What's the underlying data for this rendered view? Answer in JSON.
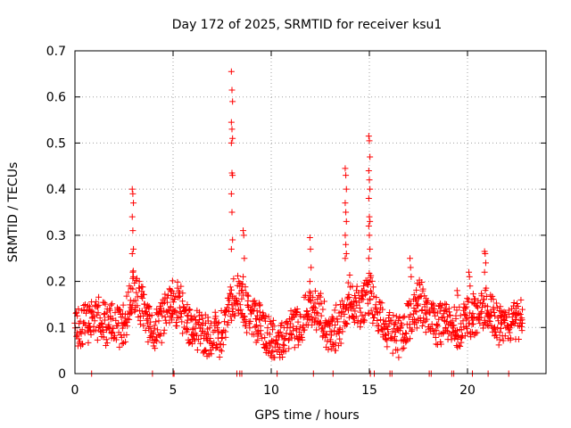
{
  "chart_data": {
    "type": "scatter",
    "title": "Day 172 of 2025, SRMTID for receiver ksu1",
    "xlabel": "GPS time / hours",
    "ylabel": "SRMTID / TECUs",
    "xlim": [
      0,
      24
    ],
    "ylim": [
      0,
      0.7
    ],
    "xticks": [
      0,
      5,
      10,
      15,
      20
    ],
    "yticks": [
      0,
      0.1,
      0.2,
      0.3,
      0.4,
      0.5,
      0.6,
      0.7
    ],
    "grid": true,
    "marker": "plus",
    "colors": {
      "series": "#ff0000",
      "grid": "#a0a0a0",
      "axes": "#000000"
    },
    "series": [
      {
        "name": "SRMTID",
        "trend": [
          [
            0.0,
            0.1
          ],
          [
            0.5,
            0.11
          ],
          [
            1.0,
            0.12
          ],
          [
            1.5,
            0.11
          ],
          [
            2.0,
            0.11
          ],
          [
            2.5,
            0.1
          ],
          [
            2.8,
            0.15
          ],
          [
            3.0,
            0.18
          ],
          [
            3.5,
            0.14
          ],
          [
            4.0,
            0.09
          ],
          [
            4.5,
            0.12
          ],
          [
            5.0,
            0.16
          ],
          [
            5.5,
            0.13
          ],
          [
            6.0,
            0.1
          ],
          [
            6.5,
            0.08
          ],
          [
            7.0,
            0.08
          ],
          [
            7.5,
            0.09
          ],
          [
            8.0,
            0.16
          ],
          [
            8.5,
            0.16
          ],
          [
            9.0,
            0.12
          ],
          [
            9.5,
            0.11
          ],
          [
            10.0,
            0.07
          ],
          [
            10.5,
            0.07
          ],
          [
            11.0,
            0.09
          ],
          [
            11.5,
            0.11
          ],
          [
            12.0,
            0.15
          ],
          [
            12.5,
            0.13
          ],
          [
            13.0,
            0.09
          ],
          [
            13.5,
            0.1
          ],
          [
            14.0,
            0.17
          ],
          [
            14.5,
            0.14
          ],
          [
            15.0,
            0.17
          ],
          [
            15.5,
            0.12
          ],
          [
            16.0,
            0.09
          ],
          [
            16.5,
            0.08
          ],
          [
            17.0,
            0.11
          ],
          [
            17.5,
            0.16
          ],
          [
            18.0,
            0.13
          ],
          [
            18.5,
            0.11
          ],
          [
            19.0,
            0.11
          ],
          [
            19.5,
            0.1
          ],
          [
            20.0,
            0.12
          ],
          [
            20.5,
            0.13
          ],
          [
            21.0,
            0.14
          ],
          [
            21.5,
            0.11
          ],
          [
            22.0,
            0.11
          ],
          [
            22.5,
            0.12
          ],
          [
            22.8,
            0.13
          ]
        ],
        "peaks": [
          {
            "x": 2.95,
            "values": [
              0.4,
              0.39,
              0.37,
              0.34,
              0.31,
              0.27,
              0.26,
              0.22,
              0.21
            ]
          },
          {
            "x": 8.0,
            "values": [
              0.655,
              0.615,
              0.59,
              0.545,
              0.53,
              0.51,
              0.5,
              0.435,
              0.43,
              0.39,
              0.35,
              0.29,
              0.27
            ]
          },
          {
            "x": 8.6,
            "values": [
              0.31,
              0.3,
              0.25,
              0.21
            ]
          },
          {
            "x": 12.0,
            "values": [
              0.295,
              0.27,
              0.23,
              0.2
            ]
          },
          {
            "x": 13.8,
            "values": [
              0.445,
              0.43,
              0.4,
              0.37,
              0.35,
              0.33,
              0.3,
              0.28,
              0.26,
              0.25
            ]
          },
          {
            "x": 15.0,
            "values": [
              0.515,
              0.505,
              0.47,
              0.44,
              0.42,
              0.4,
              0.38,
              0.34,
              0.33,
              0.32,
              0.3,
              0.27,
              0.25
            ]
          },
          {
            "x": 17.1,
            "values": [
              0.25,
              0.23,
              0.21
            ]
          },
          {
            "x": 19.5,
            "values": [
              0.18,
              0.17
            ]
          },
          {
            "x": 20.1,
            "values": [
              0.22,
              0.21,
              0.19
            ]
          },
          {
            "x": 20.9,
            "values": [
              0.265,
              0.26,
              0.24,
              0.22
            ]
          }
        ],
        "zero_points": [
          0.85,
          3.95,
          5.0,
          5.05,
          8.25,
          8.4,
          8.5,
          10.3,
          12.15,
          13.15,
          15.05,
          15.25,
          16.05,
          16.15,
          18.05,
          18.15,
          19.2,
          19.3,
          20.25,
          21.05,
          22.1
        ]
      }
    ]
  }
}
